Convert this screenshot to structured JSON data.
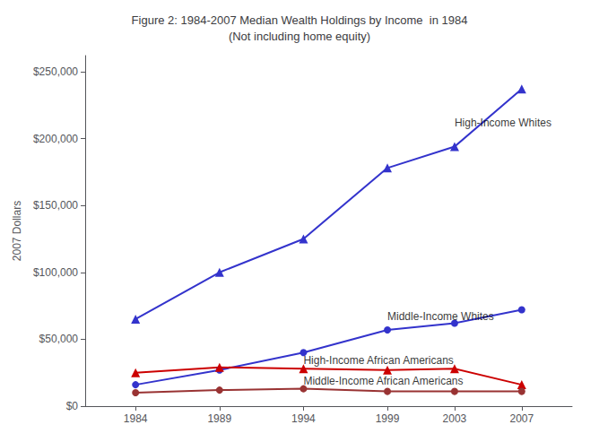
{
  "chart_data": {
    "type": "line",
    "title": "Figure 2: 1984-2007 Median Wealth Holdings by Income  in 1984\n(Not including home equity)",
    "ylabel": "2007 Dollars",
    "x": [
      1984,
      1989,
      1994,
      1999,
      2003,
      2007
    ],
    "series": [
      {
        "name": "High-Income Whites",
        "color": "#3333CC",
        "marker": "triangle",
        "values": [
          65000,
          100000,
          125000,
          178000,
          194000,
          237000
        ]
      },
      {
        "name": "Middle-Income Whites",
        "color": "#3333CC",
        "marker": "circle",
        "values": [
          16000,
          27000,
          40000,
          57000,
          62000,
          72000
        ]
      },
      {
        "name": "High-Income African Americans",
        "color": "#CC0000",
        "marker": "triangle",
        "values": [
          25000,
          29000,
          28000,
          27000,
          28000,
          16000
        ]
      },
      {
        "name": "Middle-Income African Americans",
        "color": "#993333",
        "marker": "circle",
        "values": [
          10000,
          12000,
          13000,
          11000,
          11000,
          11000
        ]
      }
    ],
    "annotations": [
      {
        "text": "High-Income Whites",
        "x": 2003,
        "y": 212000
      },
      {
        "text": "Middle-Income Whites",
        "x": 1999,
        "y": 67000
      },
      {
        "text": "High-Income African Americans",
        "x": 1994,
        "y": 34000
      },
      {
        "text": "Middle-Income African Americans",
        "x": 1994,
        "y": 19000
      }
    ],
    "xlim": [
      1981,
      2010
    ],
    "xticks": [
      1984,
      1989,
      1994,
      1999,
      2003,
      2007
    ],
    "ylim": [
      0,
      262000
    ],
    "yticks": [
      {
        "value": 0,
        "label": "$0"
      },
      {
        "value": 50000,
        "label": "$50,000"
      },
      {
        "value": 100000,
        "label": "$100,000"
      },
      {
        "value": 150000,
        "label": "$150,000"
      },
      {
        "value": 200000,
        "label": "$200,000"
      },
      {
        "value": 250000,
        "label": "$250,000"
      }
    ],
    "grid": false
  }
}
